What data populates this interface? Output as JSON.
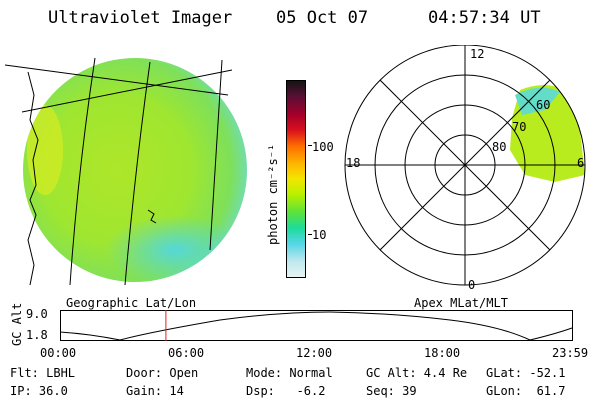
{
  "header": {
    "title": "Ultraviolet Imager",
    "date": "05 Oct 07",
    "time": "04:57:34 UT"
  },
  "colorbar": {
    "unit_label": "photon cm⁻²s⁻¹",
    "ticks": [
      "100",
      "10"
    ],
    "colors": [
      "#141414",
      "#5a0f35",
      "#a3002a",
      "#d80f1e",
      "#ff6a00",
      "#ffb400",
      "#f2e600",
      "#b8f000",
      "#5ce23a",
      "#1ddc9a",
      "#55d6e6",
      "#bfe8ee",
      "#e9f3f4"
    ]
  },
  "polar_plot": {
    "lat_labels": [
      "60",
      "70",
      "80"
    ],
    "mlt_labels": {
      "top": "12",
      "left": "18",
      "right": "6",
      "bottom": "0"
    }
  },
  "map_labels": {
    "left": "Geographic Lat/Lon",
    "right": "Apex MLat/MLT"
  },
  "altitude_strip": {
    "axis_label": "GC Alt",
    "y_ticks": [
      "9.0",
      "1.8"
    ],
    "x_ticks": [
      "00:00",
      "06:00",
      "12:00",
      "18:00",
      "23:59"
    ],
    "marker_time": "04:57:34"
  },
  "footer": {
    "row1": [
      "Flt: LBHL",
      "Door: Open",
      "Mode: Normal",
      "GC Alt: 4.4 Re",
      "GLat: -52.1"
    ],
    "row2": [
      "IP: 36.0",
      "Gain: 14",
      "Dsp:   -6.2",
      "Seq: 39",
      "GLon:  61.7"
    ]
  },
  "colors": {
    "aurora_green": "#b9ec1e",
    "aurora_cyan": "#63dcc8",
    "marker_red": "#dd2222"
  }
}
